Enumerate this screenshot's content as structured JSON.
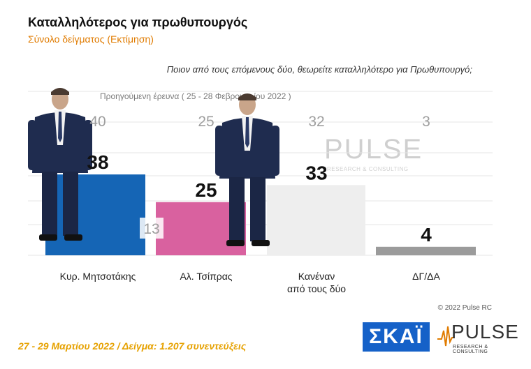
{
  "header": {
    "title": "Καταλληλότερος για πρωθυπουργός",
    "subtitle": "Σύνολο δείγματος   (Εκτίμηση)",
    "question": "Ποιον από τους επόμενους δύο, θεωρείτε καταλληλότερο για Πρωθυπουργό;"
  },
  "previous_survey": {
    "caption": "Προηγούμενη έρευνα  ( 25 - 28 Φεβρουαρίου  2022 )"
  },
  "chart_data": {
    "type": "bar",
    "categories": [
      "Κυρ. Μητσοτάκης",
      "Αλ. Τσίπρας",
      "Κανέναν από τους δύο",
      "ΔΓ/ΔΑ"
    ],
    "category_lines": [
      [
        "Κυρ. Μητσοτάκης"
      ],
      [
        "Αλ. Τσίπρας"
      ],
      [
        "Κανέναν",
        "από τους δύο"
      ],
      [
        "ΔΓ/ΔΑ"
      ]
    ],
    "series": [
      {
        "values": [
          38,
          25,
          33,
          4
        ]
      },
      {
        "values": [
          40,
          25,
          32,
          3
        ]
      }
    ],
    "difference_label": "13",
    "colors": [
      "#1565b5",
      "#d9619f",
      "#eeeeee",
      "#9b9b9b"
    ],
    "previous_color": "#9e9e9e",
    "ylim": [
      0,
      45
    ],
    "grid": true
  },
  "branding": {
    "copyright": "© 2022 Pulse RC",
    "skai_logo": "ΣΚΑΪ",
    "pulse_logo": "PULSE",
    "pulse_tagline": "RESEARCH & CONSULTING"
  },
  "footer": {
    "text": "27 - 29  Μαρτίου  2022  /  Δείγμα:  1.207 συνεντεύξεις"
  }
}
